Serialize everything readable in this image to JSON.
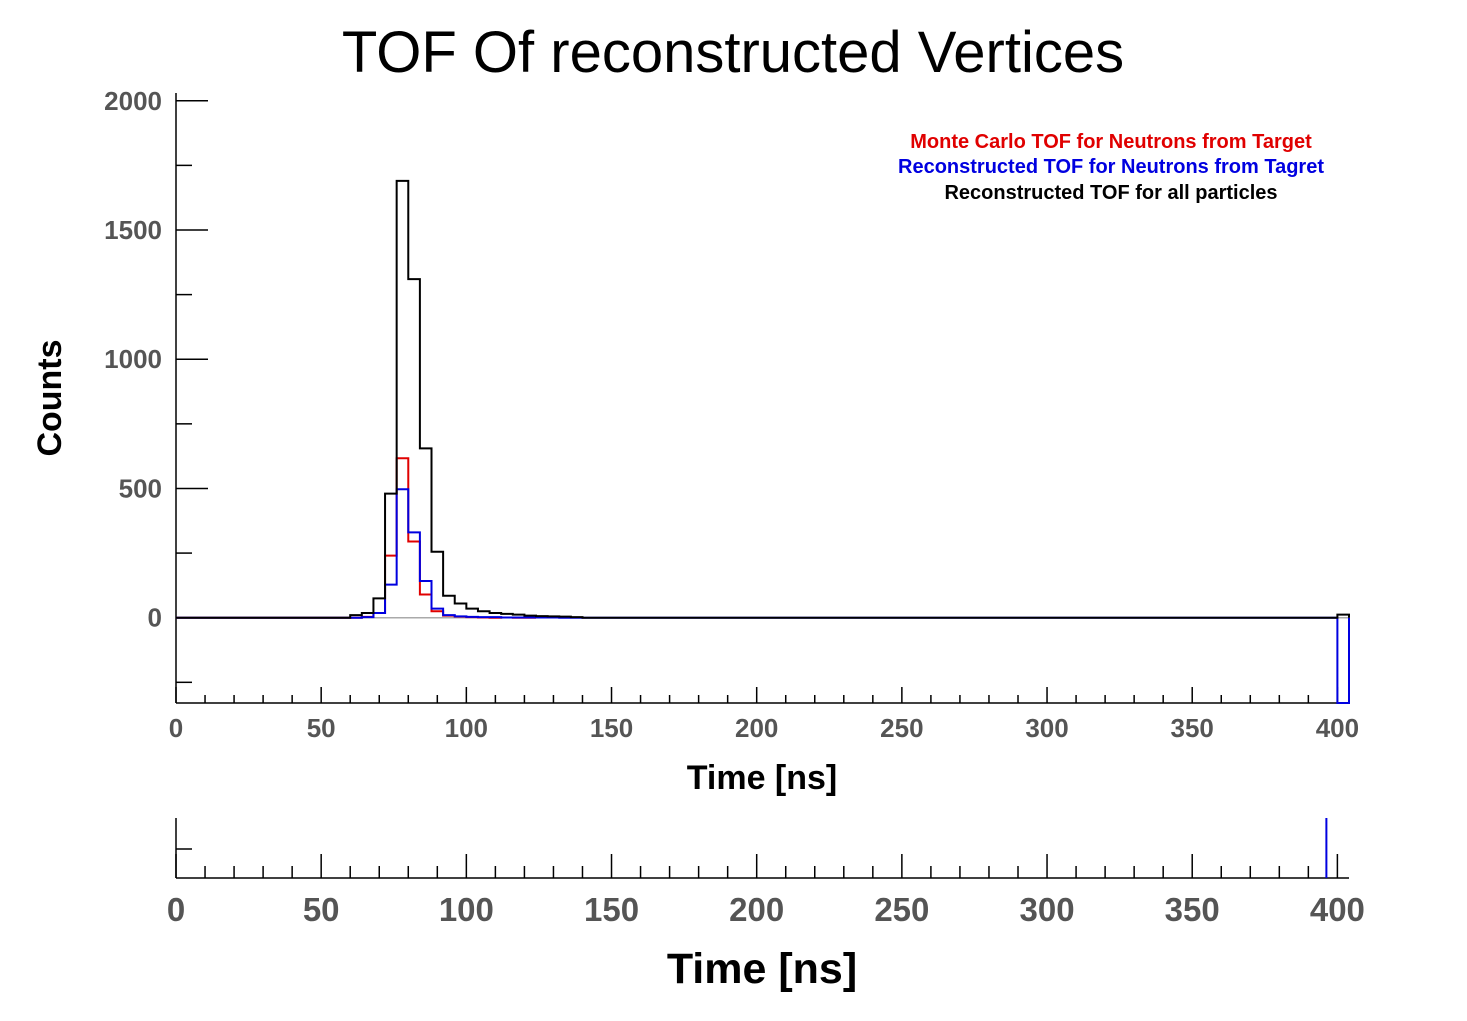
{
  "chart_data": [
    {
      "type": "line",
      "title": "TOF Of reconstructed Vertices",
      "xlabel": "Time [ns]",
      "ylabel": "Counts",
      "xlim": [
        0,
        404
      ],
      "ylim": [
        -330,
        2030
      ],
      "x_ticks": [
        0,
        50,
        100,
        150,
        200,
        250,
        300,
        350,
        400
      ],
      "y_ticks": [
        0,
        500,
        1000,
        1500,
        2000
      ],
      "grid": false,
      "legend_position": "top-right",
      "bin_width": 4,
      "colors": {
        "monte_carlo": "#e00000",
        "reco_neutrons": "#0000e0",
        "reco_all": "#000000",
        "zero_line": "#aaaaaa"
      },
      "series": [
        {
          "name": "Monte Carlo TOF for Neutrons from Target",
          "color": "#e00000",
          "x": [
            60,
            64,
            68,
            72,
            76,
            80,
            84,
            88,
            92,
            96,
            100,
            104,
            108,
            112,
            116,
            120
          ],
          "values": [
            0,
            3,
            18,
            240,
            617,
            295,
            90,
            25,
            8,
            4,
            2,
            1,
            0,
            1,
            0,
            0
          ]
        },
        {
          "name": "Reconstructed TOF for Neutrons from Tagret",
          "color": "#0000e0",
          "x": [
            60,
            64,
            68,
            72,
            76,
            80,
            84,
            88,
            92,
            96,
            100,
            104,
            108,
            112,
            116,
            120,
            124,
            128,
            132,
            400
          ],
          "values": [
            0,
            2,
            18,
            128,
            497,
            330,
            142,
            35,
            10,
            5,
            3,
            2,
            2,
            1,
            1,
            1,
            1,
            1,
            0,
            -330
          ]
        },
        {
          "name": "Reconstructed TOF for all particles",
          "color": "#000000",
          "x": [
            60,
            64,
            68,
            72,
            76,
            80,
            84,
            88,
            92,
            96,
            100,
            104,
            108,
            112,
            116,
            120,
            124,
            128,
            132,
            136,
            400
          ],
          "values": [
            10,
            18,
            75,
            480,
            1690,
            1310,
            655,
            255,
            85,
            55,
            35,
            25,
            18,
            15,
            12,
            8,
            6,
            5,
            4,
            2,
            12
          ]
        }
      ]
    },
    {
      "type": "line",
      "title": "",
      "xlabel": "Time [ns]",
      "ylabel": "",
      "xlim": [
        0,
        404
      ],
      "x_ticks": [
        0,
        50,
        100,
        150,
        200,
        250,
        300,
        350,
        400
      ],
      "grid": false,
      "series": [
        {
          "color": "#0000e0",
          "x": [
            400
          ],
          "values": [
            1
          ]
        }
      ]
    }
  ]
}
